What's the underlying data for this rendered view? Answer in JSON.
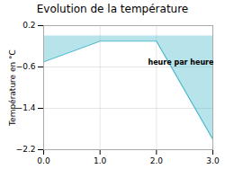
{
  "chart_data": {
    "type": "area",
    "title": "Evolution de la température",
    "ylabel": "Température en °C",
    "x": [
      0,
      1,
      2,
      3
    ],
    "values": [
      -0.5,
      -0.1,
      -0.1,
      -2.0
    ],
    "color": "#4ab8cc",
    "annotations": [
      {
        "text": "heure par heure",
        "x": 1.85,
        "y": -0.55
      }
    ],
    "xlim": [
      0,
      3
    ],
    "ylim": [
      -2.2,
      0.2
    ],
    "xticks": [
      0,
      1,
      2,
      3
    ],
    "yticks": [
      0.2,
      -0.6,
      -1.4,
      -2.2
    ],
    "grid": true
  }
}
